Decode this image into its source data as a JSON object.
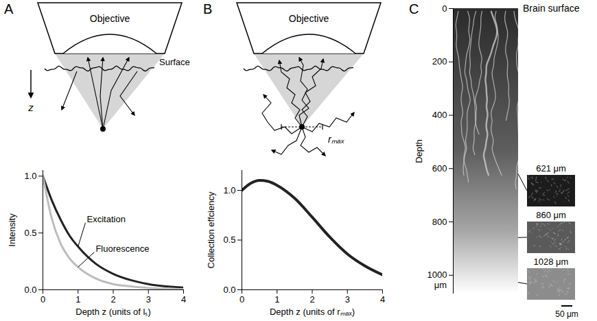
{
  "chart_data": [
    {
      "type": "line",
      "x_label": "Depth z (units of lₛ)",
      "y_label": "Intensity",
      "xlim": [
        0,
        4
      ],
      "ylim": [
        0,
        1.05
      ],
      "xticks": [
        0,
        1,
        2,
        3,
        4
      ],
      "yticks": [
        {
          "value": 0,
          "label": "0.0"
        },
        0.5,
        {
          "value": 1,
          "label": "1.0"
        }
      ],
      "x": [
        0,
        0.25,
        0.5,
        0.75,
        1,
        1.5,
        2,
        2.5,
        3,
        3.5,
        4
      ],
      "series": [
        {
          "name": "Excitation",
          "color": "#222222",
          "values": [
            1,
            0.79,
            0.62,
            0.48,
            0.38,
            0.23,
            0.14,
            0.085,
            0.05,
            0.03,
            0.02
          ]
        },
        {
          "name": "Fluorescence",
          "color": "#bdbdbd",
          "values": [
            1,
            0.63,
            0.41,
            0.28,
            0.2,
            0.1,
            0.05,
            0.03,
            0.015,
            0.01,
            0.005
          ]
        }
      ],
      "annotations": {
        "panel": "A",
        "objective": "Objective",
        "surface": "Surface",
        "depth_arrow": "z"
      }
    },
    {
      "type": "line",
      "x_label": "Depth z (units of rₘₐₓ)",
      "y_label": "Collection effciency",
      "xlim": [
        0,
        4
      ],
      "ylim": [
        0,
        1.2
      ],
      "xticks": [
        0,
        1,
        2,
        3,
        4
      ],
      "yticks": [
        {
          "value": 0,
          "label": "0.0"
        },
        0.5,
        {
          "value": 1,
          "label": "1.0"
        }
      ],
      "x": [
        0,
        0.25,
        0.5,
        0.75,
        1,
        1.5,
        2,
        2.5,
        3,
        3.5,
        4
      ],
      "values": [
        1,
        1.07,
        1.1,
        1.09,
        1.05,
        0.92,
        0.73,
        0.53,
        0.36,
        0.24,
        0.15
      ],
      "color": "#222222",
      "annotations": {
        "panel": "B",
        "objective": "Objective",
        "radius": "rₘₐₓ"
      }
    },
    {
      "type": "image",
      "y_label": "Depth",
      "ylim": [
        0,
        1070
      ],
      "yticks": [
        0,
        200,
        400,
        600,
        800,
        1000
      ],
      "tick_labels": "y",
      "insets": [
        {
          "depth": 621,
          "label": "621 μm"
        },
        {
          "depth": 860,
          "label": "860 μm"
        },
        {
          "depth": 1028,
          "label": "1028 μm"
        }
      ],
      "annotations": {
        "panel": "C",
        "surface": "Brain surface",
        "unit": "μm",
        "scale_bar": "50 μm"
      }
    }
  ]
}
